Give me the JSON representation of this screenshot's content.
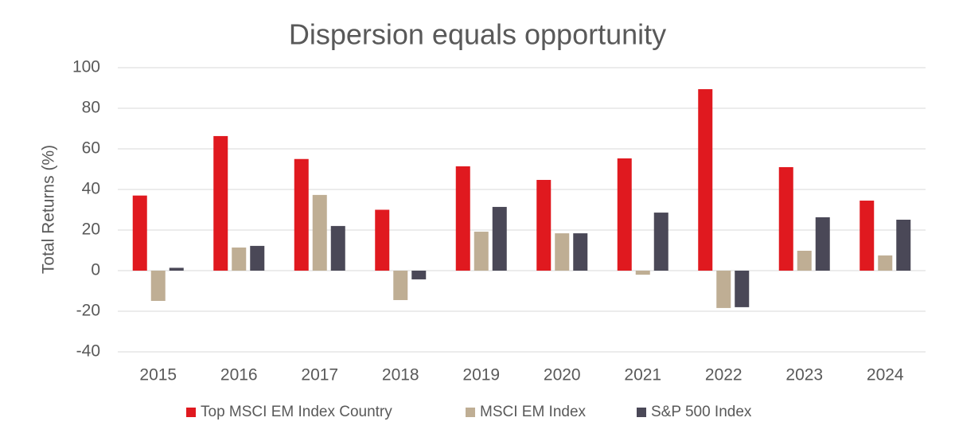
{
  "chart_data": {
    "type": "bar",
    "title": "Dispersion equals opportunity",
    "y_label": "Total Returns (%)",
    "categories": [
      "2015",
      "2016",
      "2017",
      "2018",
      "2019",
      "2020",
      "2021",
      "2022",
      "2023",
      "2024"
    ],
    "series": [
      {
        "name": "Top MSCI EM Index Country",
        "color": "#e0191f",
        "values": [
          37,
          66.3,
          55,
          30,
          51.4,
          44.7,
          55.3,
          89.4,
          51,
          34.5
        ]
      },
      {
        "name": "MSCI EM Index",
        "color": "#bfae94",
        "values": [
          -14.9,
          11.4,
          37.3,
          -14.5,
          19.2,
          18.4,
          -2,
          -18.4,
          9.8,
          7.5
        ]
      },
      {
        "name": "S&P 500 Index",
        "color": "#4a4857",
        "values": [
          1.4,
          12.2,
          22,
          -4.3,
          31.4,
          18.4,
          28.6,
          -18,
          26.3,
          25.1
        ]
      }
    ],
    "ylim": [
      -40,
      100
    ],
    "yticks": [
      -40,
      -20,
      0,
      20,
      40,
      60,
      80,
      100
    ],
    "grid": true,
    "legend": "bottom"
  }
}
